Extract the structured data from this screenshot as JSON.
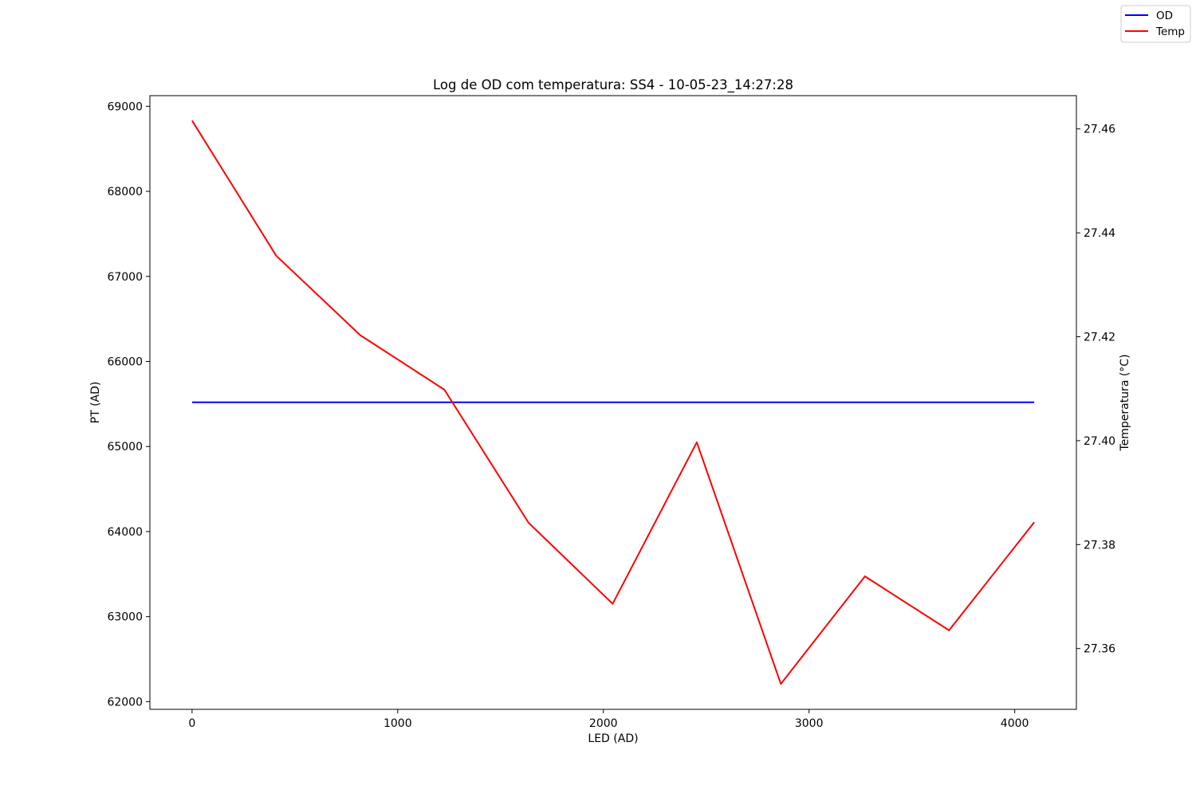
{
  "chart_data": {
    "type": "line",
    "title": "Log de OD com temperatura: SS4 - 10-05-23_14:27:28",
    "xlabel": "LED (AD)",
    "ylabel": "PT (AD)",
    "y2label": "Temperatura (°C)",
    "xlim": [
      -205,
      4300
    ],
    "ylim": [
      61910,
      69125
    ],
    "y2lim": [
      27.3483,
      27.4664
    ],
    "xticks": [
      0,
      1000,
      2000,
      3000,
      4000
    ],
    "yticks": [
      62000,
      63000,
      64000,
      65000,
      66000,
      67000,
      68000,
      69000
    ],
    "y2ticks": [
      27.36,
      27.38,
      27.4,
      27.42,
      27.44,
      27.46
    ],
    "xtick_labels": [
      "0",
      "1000",
      "2000",
      "3000",
      "4000"
    ],
    "ytick_labels": [
      "62000",
      "63000",
      "64000",
      "65000",
      "66000",
      "67000",
      "68000",
      "69000"
    ],
    "y2tick_labels": [
      "27.36",
      "27.38",
      "27.40",
      "27.42",
      "27.44",
      "27.46"
    ],
    "grid": false,
    "legend_position": "top-right (figure)",
    "series": [
      {
        "name": "OD",
        "axis": "left",
        "color": "#0000ff",
        "x": [
          0,
          409,
          818,
          1227,
          1636,
          2045,
          2454,
          2863,
          3272,
          3681,
          4095
        ],
        "values": [
          65520,
          65520,
          65520,
          65520,
          65520,
          65520,
          65520,
          65520,
          65520,
          65520,
          65520
        ]
      },
      {
        "name": "Temp",
        "axis": "right",
        "color": "#ff0000",
        "x": [
          0,
          409,
          818,
          1227,
          1636,
          2045,
          2454,
          2863,
          3272,
          3681,
          4095
        ],
        "values": [
          27.4616,
          27.4356,
          27.4203,
          27.4098,
          27.3842,
          27.3686,
          27.3997,
          27.3532,
          27.3739,
          27.3635,
          27.3843
        ]
      }
    ]
  }
}
